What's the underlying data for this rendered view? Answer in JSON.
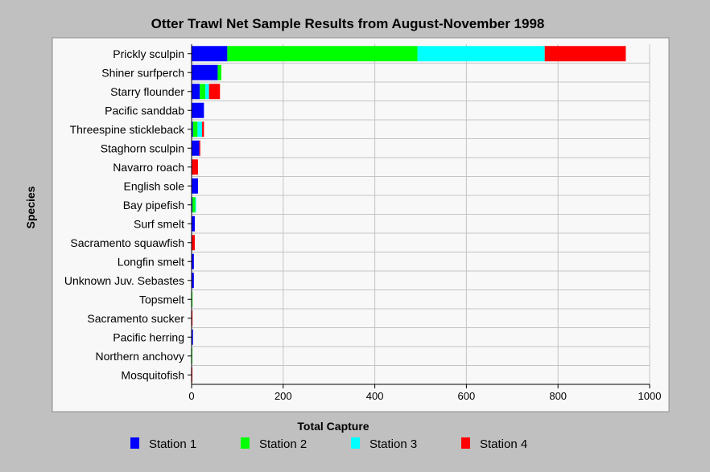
{
  "chart_data": {
    "type": "bar",
    "orientation": "horizontal",
    "stacked": true,
    "title": "Otter Trawl Net Sample Results from August-November 1998",
    "xlabel": "Total Capture",
    "ylabel": "Species",
    "xlim": [
      0,
      1000
    ],
    "xticks": [
      0,
      200,
      400,
      600,
      800,
      1000
    ],
    "grid": true,
    "legend_position": "bottom",
    "categories": [
      "Prickly sculpin",
      "Shiner surfperch",
      "Starry flounder",
      "Pacific sanddab",
      "Threespine stickleback",
      "Staghorn sculpin",
      "Navarro roach",
      "English sole",
      "Bay pipefish",
      "Surf smelt",
      "Sacramento squawfish",
      "Longfin smelt",
      "Unknown Juv. Sebastes",
      "Topsmelt",
      "Sacramento sucker",
      "Pacific herring",
      "Northern anchovy",
      "Mosquitofish"
    ],
    "series": [
      {
        "name": "Station 1",
        "color": "#0000ff",
        "values": [
          78,
          57,
          18,
          27,
          3,
          17,
          1,
          14,
          2,
          7,
          1,
          5,
          5,
          0,
          0,
          3,
          0,
          0
        ]
      },
      {
        "name": "Station 2",
        "color": "#00ff00",
        "values": [
          415,
          8,
          12,
          0,
          10,
          0,
          0,
          0,
          6,
          0,
          0,
          0,
          0,
          2,
          0,
          0,
          1,
          0
        ]
      },
      {
        "name": "Station 3",
        "color": "#00ffff",
        "values": [
          278,
          0,
          8,
          0,
          10,
          0,
          0,
          0,
          1,
          0,
          0,
          0,
          0,
          0,
          0,
          0,
          0,
          0
        ]
      },
      {
        "name": "Station 4",
        "color": "#ff0000",
        "values": [
          177,
          0,
          24,
          0,
          4,
          2,
          13,
          0,
          0,
          0,
          6,
          0,
          0,
          0,
          2,
          0,
          0,
          1
        ]
      }
    ]
  }
}
